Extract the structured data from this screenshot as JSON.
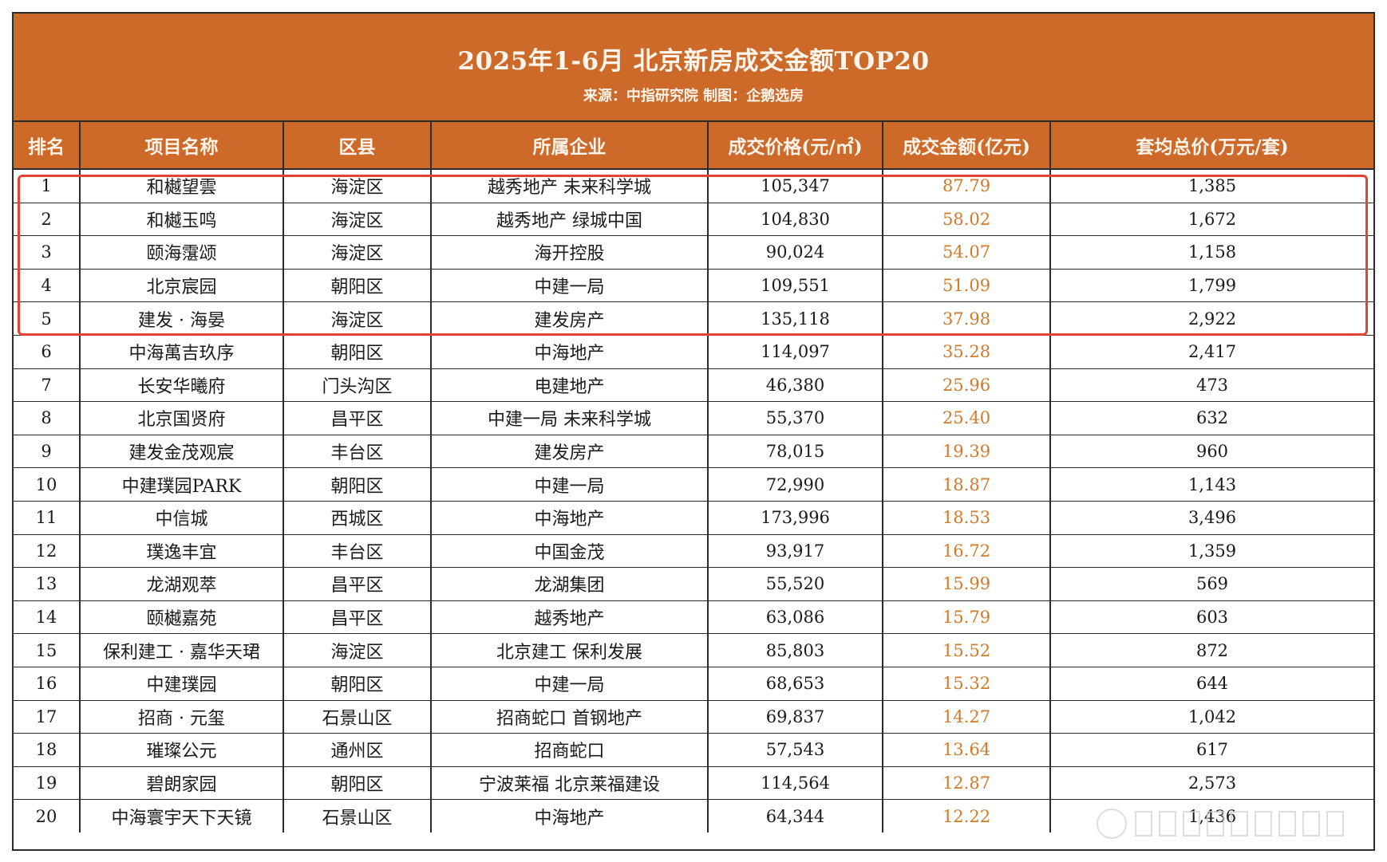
{
  "header": {
    "title": "2025年1-6月 北京新房成交金额TOP20",
    "subtitle": "来源：中指研究院 制图：企鹅选房"
  },
  "columns": [
    "排名",
    "项目名称",
    "区县",
    "所属企业",
    "成交价格(元/㎡)",
    "成交金额(亿元)",
    "套均总价(万元/套)"
  ],
  "rows": [
    [
      "1",
      "和樾望雲",
      "海淀区",
      "越秀地产 未来科学城",
      "105,347",
      "87.79",
      "1,385"
    ],
    [
      "2",
      "和樾玉鸣",
      "海淀区",
      "越秀地产 绿城中国",
      "104,830",
      "58.02",
      "1,672"
    ],
    [
      "3",
      "颐海霮颂",
      "海淀区",
      "海开控股",
      "90,024",
      "54.07",
      "1,158"
    ],
    [
      "4",
      "北京宸园",
      "朝阳区",
      "中建一局",
      "109,551",
      "51.09",
      "1,799"
    ],
    [
      "5",
      "建发 · 海晏",
      "海淀区",
      "建发房产",
      "135,118",
      "37.98",
      "2,922"
    ],
    [
      "6",
      "中海萬吉玖序",
      "朝阳区",
      "中海地产",
      "114,097",
      "35.28",
      "2,417"
    ],
    [
      "7",
      "长安华曦府",
      "门头沟区",
      "电建地产",
      "46,380",
      "25.96",
      "473"
    ],
    [
      "8",
      "北京国贤府",
      "昌平区",
      "中建一局 未来科学城",
      "55,370",
      "25.40",
      "632"
    ],
    [
      "9",
      "建发金茂观宸",
      "丰台区",
      "建发房产",
      "78,015",
      "19.39",
      "960"
    ],
    [
      "10",
      "中建璞园PARK",
      "朝阳区",
      "中建一局",
      "72,990",
      "18.87",
      "1,143"
    ],
    [
      "11",
      "中信城",
      "西城区",
      "中海地产",
      "173,996",
      "18.53",
      "3,496"
    ],
    [
      "12",
      "璞逸丰宜",
      "丰台区",
      "中国金茂",
      "93,917",
      "16.72",
      "1,359"
    ],
    [
      "13",
      "龙湖观萃",
      "昌平区",
      "龙湖集团",
      "55,520",
      "15.99",
      "569"
    ],
    [
      "14",
      "颐樾嘉苑",
      "昌平区",
      "越秀地产",
      "63,086",
      "15.79",
      "603"
    ],
    [
      "15",
      "保利建工 · 嘉华天珺",
      "海淀区",
      "北京建工 保利发展",
      "85,803",
      "15.52",
      "872"
    ],
    [
      "16",
      "中建璞园",
      "朝阳区",
      "中建一局",
      "68,653",
      "15.32",
      "644"
    ],
    [
      "17",
      "招商 · 元玺",
      "石景山区",
      "招商蛇口 首钢地产",
      "69,837",
      "14.27",
      "1,042"
    ],
    [
      "18",
      "璀璨公元",
      "通州区",
      "招商蛇口",
      "57,543",
      "13.64",
      "617"
    ],
    [
      "19",
      "碧朗家园",
      "朝阳区",
      "宁波莱福 北京莱福建设",
      "114,564",
      "12.87",
      "2,573"
    ],
    [
      "20",
      "中海寰宇天下天镜",
      "石景山区",
      "中海地产",
      "64,344",
      "12.22",
      "1,436"
    ]
  ],
  "colors": {
    "header_bg": "#cd6a2a",
    "amount_text": "#d07a2a",
    "highlight_border": "#e04434"
  }
}
